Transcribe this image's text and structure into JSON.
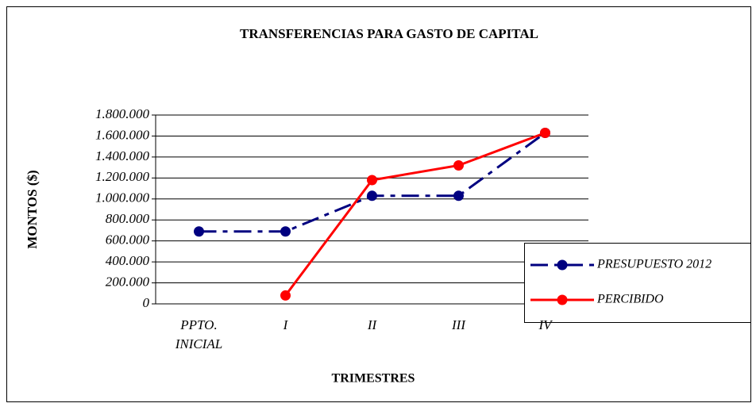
{
  "chart_data": {
    "type": "line",
    "title": "TRANSFERENCIAS PARA GASTO DE CAPITAL",
    "x_label": "TRIMESTRES",
    "y_label": "MONTOS ($)",
    "categories": [
      "PPTO. INICIAL",
      "I",
      "II",
      "III",
      "IV"
    ],
    "series": [
      {
        "name": "PRESUPUESTO 2012",
        "color": "#000080",
        "dashed": true,
        "values": [
          690000,
          690000,
          1030000,
          1030000,
          1630000
        ]
      },
      {
        "name": "PERCIBIDO",
        "color": "#ff0000",
        "dashed": false,
        "values": [
          null,
          80000,
          1180000,
          1320000,
          1630000
        ]
      }
    ],
    "ylim": [
      0,
      1800000
    ],
    "yticks": [
      0,
      {
        "value": 200000,
        "label": "200.000"
      },
      {
        "value": 400000,
        "label": "400.000"
      },
      {
        "value": 600000,
        "label": "600.000"
      },
      {
        "value": 800000,
        "label": "800.000"
      },
      {
        "value": 1000000,
        "label": "1.000.000"
      },
      {
        "value": 1200000,
        "label": "1.200.000"
      },
      {
        "value": 1400000,
        "label": "1.400.000"
      },
      {
        "value": 1600000,
        "label": "1.600.000"
      },
      {
        "value": 1800000,
        "label": "1.800.000"
      }
    ],
    "grid": true,
    "legend": "right"
  }
}
